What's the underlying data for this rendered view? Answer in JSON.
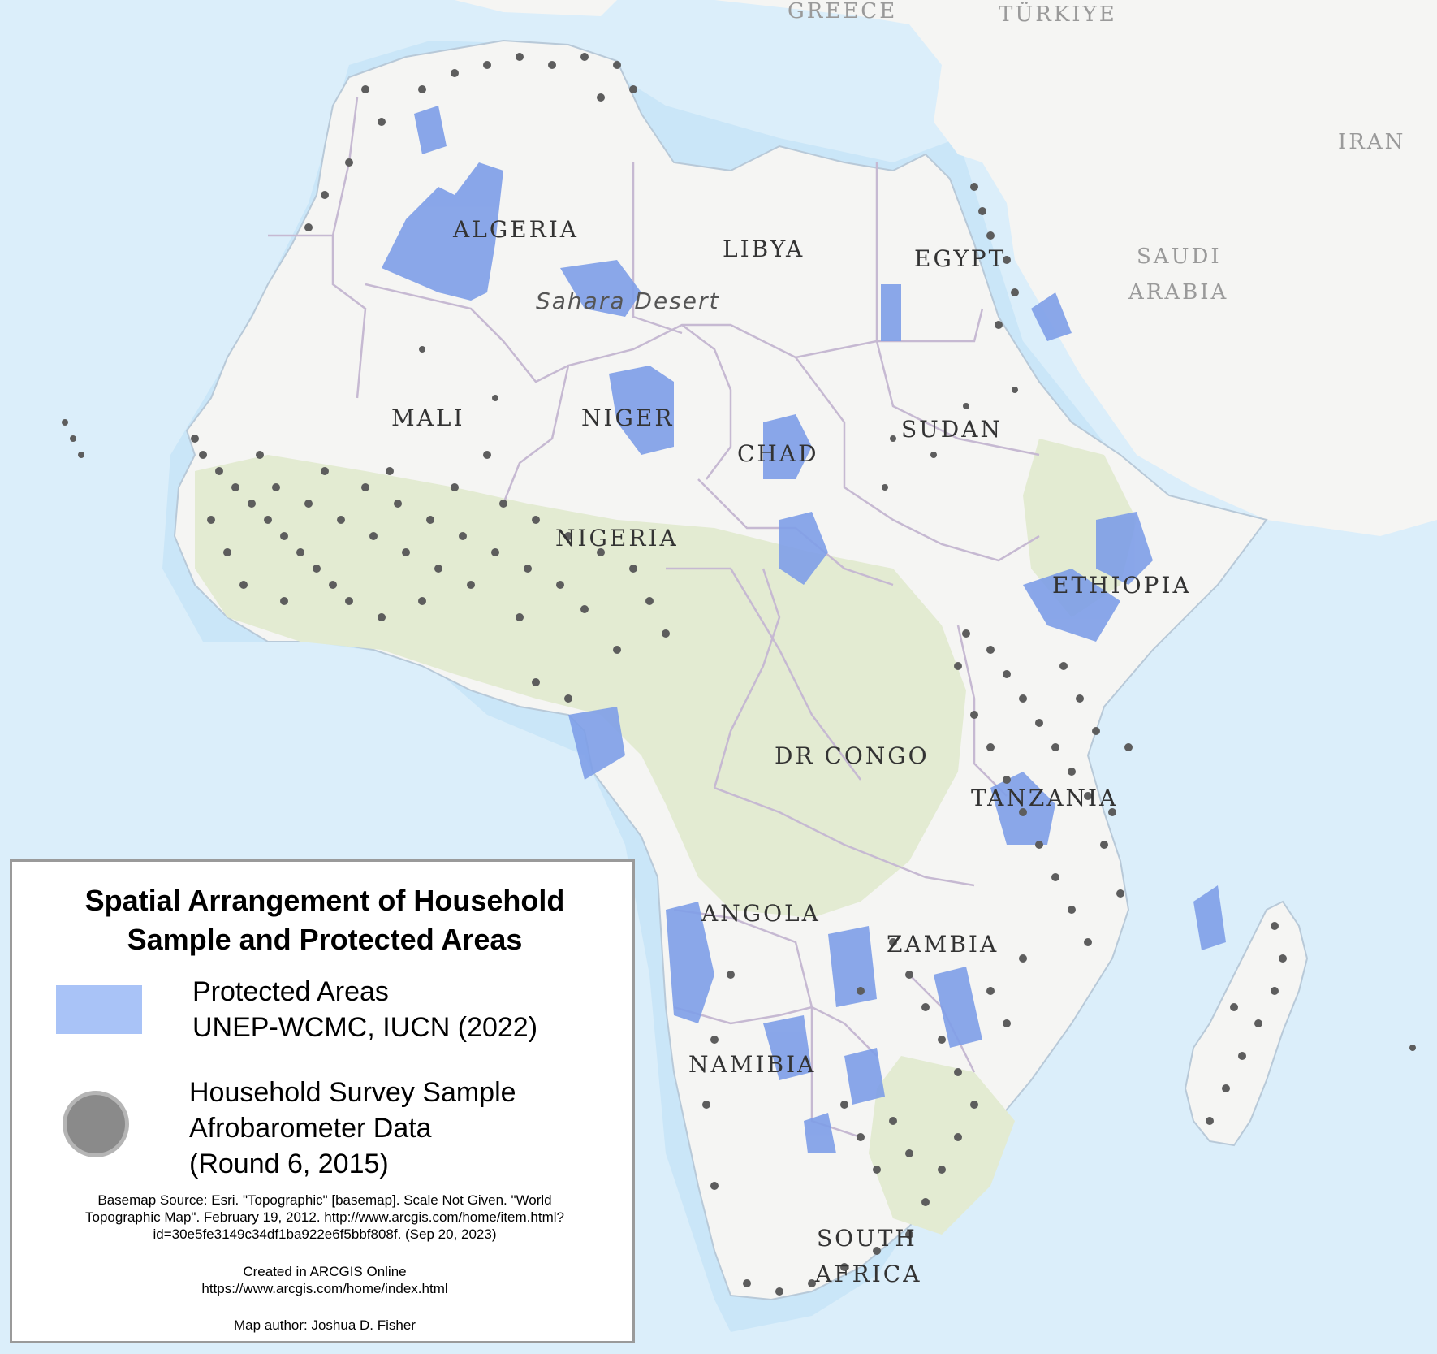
{
  "map": {
    "colors": {
      "ocean": "#dbeefa",
      "ocean_shallow": "#c3e2f6",
      "land": "#f5f5f3",
      "forest": "#e3ebd2",
      "border": "#c6b9d2",
      "protected_areas": "#7e9ee8",
      "sample_points": "#5d5d5d",
      "legend_pa": "#a9c3f7",
      "legend_hh": "#8a8a8a"
    },
    "labels": {
      "greece": "GREECE",
      "turkiye": "TÜRKIYE",
      "iran": "IRAN",
      "saudi": "SAUDI",
      "arabia": "ARABIA",
      "algeria": "ALGERIA",
      "libya": "LIBYA",
      "egypt": "EGYPT",
      "sahara": "Sahara Desert",
      "mali": "MALI",
      "niger": "NIGER",
      "chad": "CHAD",
      "sudan": "SUDAN",
      "nigeria": "NIGERIA",
      "ethiopia": "ETHIOPIA",
      "drcongo": "DR CONGO",
      "tanzania": "TANZANIA",
      "angola": "ANGOLA",
      "zambia": "ZAMBIA",
      "namibia": "NAMIBIA",
      "south": "SOUTH",
      "africa": "AFRICA"
    }
  },
  "legend": {
    "title_line1": "Spatial Arrangement of Household",
    "title_line2": "Sample and Protected Areas",
    "protected_areas_line1": "Protected Areas",
    "protected_areas_line2": "UNEP-WCMC, IUCN (2022)",
    "household_line1": "Household Survey Sample",
    "household_line2": "Afrobarometer Data",
    "household_line3": "(Round 6, 2015)",
    "basemap_line1": "Basemap Source: Esri. \"Topographic\" [basemap]. Scale Not Given. \"World",
    "basemap_line2": "Topographic Map\". February 19, 2012. http://www.arcgis.com/home/item.html?",
    "basemap_line3": "id=30e5fe3149c34df1ba922e6f5bbf808f. (Sep 20, 2023)",
    "created_line1": "Created in  ARCGIS Online",
    "created_line2": "https://www.arcgis.com/home/index.html",
    "author": "Map author: Joshua D. Fisher"
  }
}
